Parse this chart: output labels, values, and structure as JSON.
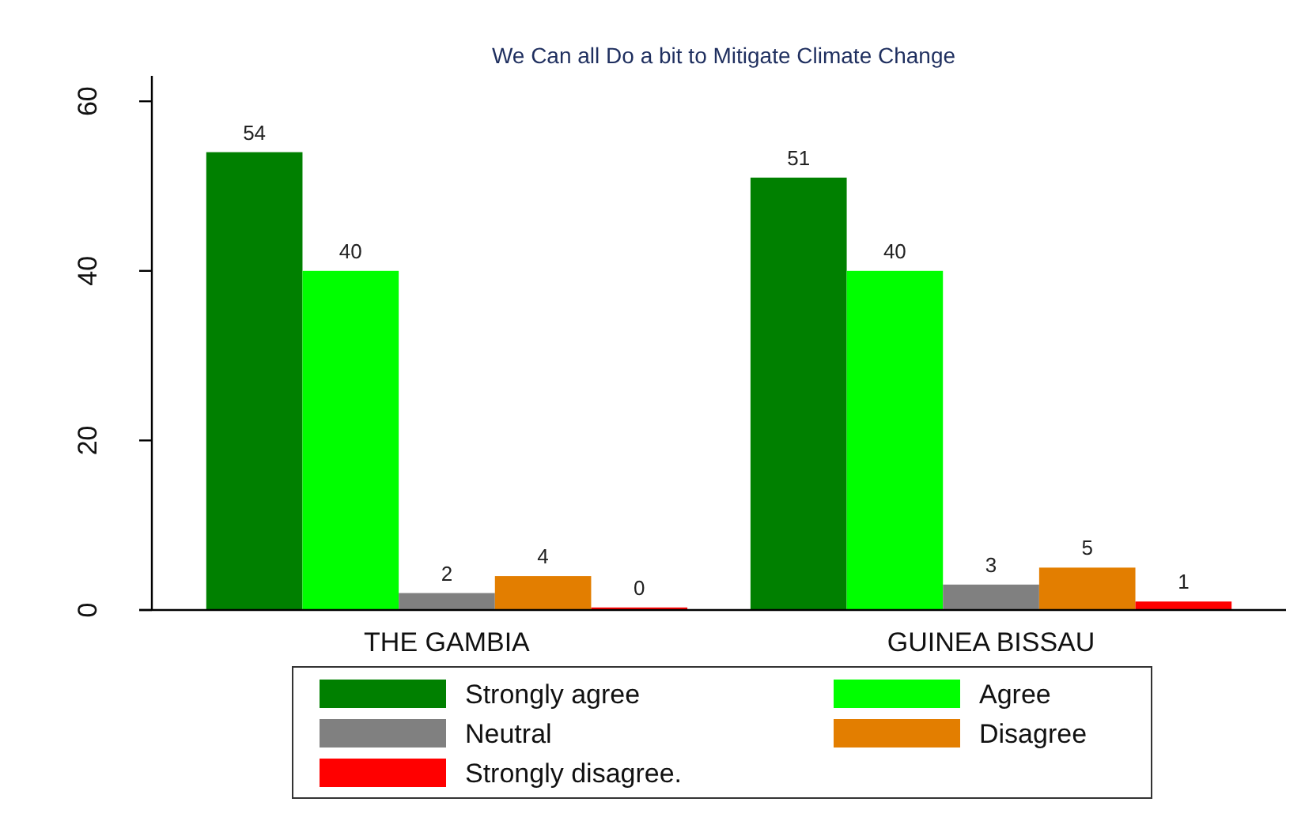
{
  "chart_data": {
    "type": "bar",
    "title": "We Can all Do a bit to Mitigate Climate Change",
    "categories": [
      "THE GAMBIA",
      "GUINEA BISSAU"
    ],
    "series": [
      {
        "name": "Strongly agree",
        "color": "#008000",
        "values": [
          54,
          51
        ],
        "value_labels": [
          "54",
          "51"
        ]
      },
      {
        "name": "Agree",
        "color": "#00ff00",
        "values": [
          40,
          40
        ],
        "value_labels": [
          "40",
          "40"
        ]
      },
      {
        "name": "Neutral",
        "color": "#808080",
        "values": [
          2,
          3
        ],
        "value_labels": [
          "2",
          "3"
        ]
      },
      {
        "name": "Disagree",
        "color": "#e37e00",
        "values": [
          4,
          5
        ],
        "value_labels": [
          "4",
          "5"
        ]
      },
      {
        "name": "Strongly disagree.",
        "color": "#ff0000",
        "values": [
          0.3,
          1
        ],
        "value_labels": [
          "0",
          "1"
        ]
      }
    ],
    "ylim": [
      0,
      63
    ],
    "yticks": [
      0,
      20,
      40,
      60
    ],
    "legend": "bottom",
    "grid": false
  }
}
